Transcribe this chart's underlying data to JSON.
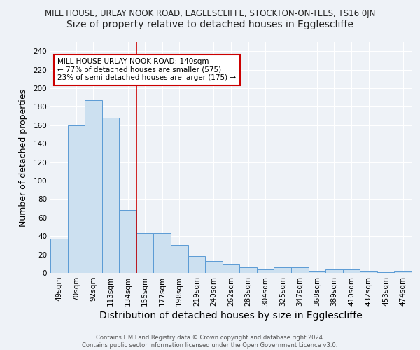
{
  "title": "MILL HOUSE, URLAY NOOK ROAD, EAGLESCLIFFE, STOCKTON-ON-TEES, TS16 0JN",
  "subtitle": "Size of property relative to detached houses in Egglescliffe",
  "xlabel": "Distribution of detached houses by size in Egglescliffe",
  "ylabel": "Number of detached properties",
  "footer1": "Contains HM Land Registry data © Crown copyright and database right 2024.",
  "footer2": "Contains public sector information licensed under the Open Government Licence v3.0.",
  "categories": [
    "49sqm",
    "70sqm",
    "92sqm",
    "113sqm",
    "134sqm",
    "155sqm",
    "177sqm",
    "198sqm",
    "219sqm",
    "240sqm",
    "262sqm",
    "283sqm",
    "304sqm",
    "325sqm",
    "347sqm",
    "368sqm",
    "389sqm",
    "410sqm",
    "432sqm",
    "453sqm",
    "474sqm"
  ],
  "values": [
    37,
    160,
    187,
    168,
    68,
    43,
    43,
    30,
    18,
    13,
    10,
    6,
    4,
    6,
    6,
    2,
    4,
    4,
    2,
    1,
    2
  ],
  "bar_color": "#cce0f0",
  "bar_edge_color": "#5b9bd5",
  "red_line_x": 4.5,
  "red_line_color": "#cc0000",
  "annotation_text": "MILL HOUSE URLAY NOOK ROAD: 140sqm\n← 77% of detached houses are smaller (575)\n23% of semi-detached houses are larger (175) →",
  "annotation_box_edge_color": "#cc0000",
  "ylim": [
    0,
    250
  ],
  "yticks": [
    0,
    20,
    40,
    60,
    80,
    100,
    120,
    140,
    160,
    180,
    200,
    220,
    240
  ],
  "background_color": "#eef2f7",
  "plot_bg_color": "#eef2f7",
  "grid_color": "#ffffff",
  "title_fontsize": 8.5,
  "subtitle_fontsize": 10,
  "xlabel_fontsize": 10,
  "ylabel_fontsize": 9,
  "tick_fontsize": 7.5,
  "footer_fontsize": 6.0
}
